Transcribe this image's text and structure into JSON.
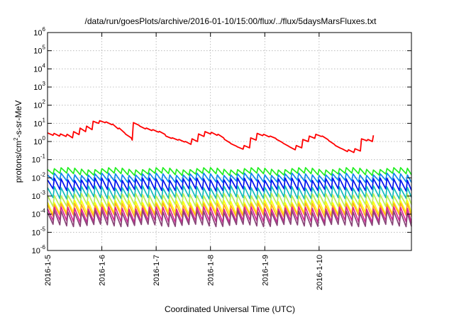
{
  "chart_data": {
    "type": "line",
    "title": "/data/run/goesPlots/archive/2016-01-10/15:00/flux/../flux/5daysMarsFluxes.txt",
    "xlabel": "Coordinated Universal Time (UTC)",
    "ylabel_parts": {
      "pre": "protons/cm",
      "sup": "2",
      "post": "-s-sr-MeV"
    },
    "y_scale": "log",
    "ylim": [
      1e-06,
      1000000.0
    ],
    "xlim_days": [
      0,
      6.7
    ],
    "x_ticks": [
      {
        "day": 0,
        "label": "2016-1-5"
      },
      {
        "day": 1,
        "label": "2016-1-6"
      },
      {
        "day": 2,
        "label": "2016-1-7"
      },
      {
        "day": 3,
        "label": "2016-1-8"
      },
      {
        "day": 4,
        "label": "2016-1-9"
      },
      {
        "day": 5,
        "label": "2016-1-10"
      }
    ],
    "y_ticks": [
      {
        "exp": -6,
        "base": "10",
        "sup": "-6"
      },
      {
        "exp": -5,
        "base": "10",
        "sup": "-5"
      },
      {
        "exp": -4,
        "base": "10",
        "sup": "-4"
      },
      {
        "exp": -3,
        "base": "10",
        "sup": "-3"
      },
      {
        "exp": -2,
        "base": "10",
        "sup": "-2"
      },
      {
        "exp": -1,
        "base": "10",
        "sup": "-1"
      },
      {
        "exp": 0,
        "base": "10",
        "sup": "0"
      },
      {
        "exp": 1,
        "base": "10",
        "sup": "1"
      },
      {
        "exp": 2,
        "base": "10",
        "sup": "2"
      },
      {
        "exp": 3,
        "base": "10",
        "sup": "3"
      },
      {
        "exp": 4,
        "base": "10",
        "sup": "4"
      },
      {
        "exp": 5,
        "base": "10",
        "sup": "5"
      },
      {
        "exp": 6,
        "base": "10",
        "sup": "6"
      }
    ],
    "grid": true,
    "main_series": {
      "color": "#ff0000",
      "points": [
        [
          0.0,
          3.0
        ],
        [
          0.1,
          2.2
        ],
        [
          0.12,
          2.8
        ],
        [
          0.22,
          2.0
        ],
        [
          0.24,
          2.6
        ],
        [
          0.34,
          1.9
        ],
        [
          0.36,
          2.5
        ],
        [
          0.46,
          1.6
        ],
        [
          0.48,
          3.5
        ],
        [
          0.58,
          2.4
        ],
        [
          0.6,
          5.5
        ],
        [
          0.7,
          3.5
        ],
        [
          0.72,
          7.0
        ],
        [
          0.82,
          4.5
        ],
        [
          0.84,
          13
        ],
        [
          0.94,
          10
        ],
        [
          0.96,
          14
        ],
        [
          1.06,
          11
        ],
        [
          1.08,
          12
        ],
        [
          1.18,
          8.5
        ],
        [
          1.2,
          9.0
        ],
        [
          1.3,
          5.0
        ],
        [
          1.32,
          5.5
        ],
        [
          1.42,
          3.0
        ],
        [
          1.44,
          2.5
        ],
        [
          1.54,
          1.6
        ],
        [
          1.56,
          1.2
        ],
        [
          1.58,
          11
        ],
        [
          1.68,
          8.0
        ],
        [
          1.7,
          7.0
        ],
        [
          1.8,
          5.0
        ],
        [
          1.82,
          5.5
        ],
        [
          1.92,
          4.0
        ],
        [
          1.94,
          4.5
        ],
        [
          2.04,
          3.3
        ],
        [
          2.06,
          3.6
        ],
        [
          2.16,
          2.5
        ],
        [
          2.18,
          2.0
        ],
        [
          2.28,
          1.5
        ],
        [
          2.3,
          1.6
        ],
        [
          2.4,
          1.2
        ],
        [
          2.42,
          1.3
        ],
        [
          2.52,
          0.95
        ],
        [
          2.54,
          1.0
        ],
        [
          2.64,
          0.7
        ],
        [
          2.66,
          1.4
        ],
        [
          2.76,
          1.0
        ],
        [
          2.78,
          2.6
        ],
        [
          2.88,
          1.9
        ],
        [
          2.9,
          3.5
        ],
        [
          3.0,
          2.6
        ],
        [
          3.02,
          3.2
        ],
        [
          3.12,
          2.2
        ],
        [
          3.14,
          2.5
        ],
        [
          3.24,
          1.6
        ],
        [
          3.26,
          1.3
        ],
        [
          3.36,
          0.85
        ],
        [
          3.38,
          0.75
        ],
        [
          3.48,
          0.55
        ],
        [
          3.5,
          0.5
        ],
        [
          3.6,
          0.38
        ],
        [
          3.62,
          0.6
        ],
        [
          3.72,
          0.45
        ],
        [
          3.74,
          1.6
        ],
        [
          3.84,
          1.2
        ],
        [
          3.86,
          2.8
        ],
        [
          3.96,
          2.1
        ],
        [
          3.98,
          2.5
        ],
        [
          4.08,
          1.8
        ],
        [
          4.1,
          2.0
        ],
        [
          4.2,
          1.5
        ],
        [
          4.22,
          1.3
        ],
        [
          4.32,
          0.9
        ],
        [
          4.34,
          0.8
        ],
        [
          4.44,
          0.55
        ],
        [
          4.46,
          0.5
        ],
        [
          4.56,
          0.35
        ],
        [
          4.58,
          0.6
        ],
        [
          4.68,
          0.45
        ],
        [
          4.7,
          1.3
        ],
        [
          4.8,
          1.0
        ],
        [
          4.82,
          2.0
        ],
        [
          4.92,
          1.5
        ],
        [
          4.94,
          2.5
        ],
        [
          5.04,
          1.9
        ],
        [
          5.06,
          2.0
        ],
        [
          5.16,
          1.3
        ],
        [
          5.18,
          1.1
        ],
        [
          5.28,
          0.7
        ],
        [
          5.3,
          0.6
        ],
        [
          5.4,
          0.42
        ],
        [
          5.42,
          0.4
        ],
        [
          5.52,
          0.28
        ],
        [
          5.54,
          0.35
        ],
        [
          5.64,
          0.25
        ],
        [
          5.66,
          0.4
        ],
        [
          5.76,
          0.3
        ],
        [
          5.78,
          1.4
        ],
        [
          5.88,
          1.1
        ],
        [
          5.9,
          1.3
        ],
        [
          5.98,
          1.0
        ],
        [
          6.0,
          2.2
        ]
      ]
    },
    "sawtooth_series": [
      {
        "color": "#22ee22",
        "peak": 0.032,
        "trough": 0.016
      },
      {
        "color": "#1188ee",
        "peak": 0.016,
        "trough": 0.0065
      },
      {
        "color": "#0011ee",
        "peak": 0.0085,
        "trough": 0.0022
      },
      {
        "color": "#11bbbb",
        "peak": 0.0032,
        "trough": 0.0008
      },
      {
        "color": "#bbee55",
        "peak": 0.0012,
        "trough": 0.0003
      },
      {
        "color": "#ffff11",
        "peak": 0.0005,
        "trough": 0.00011
      },
      {
        "color": "#ffaa22",
        "peak": 0.00035,
        "trough": 8e-05
      },
      {
        "color": "#dd2299",
        "peak": 0.00022,
        "trough": 4e-05
      },
      {
        "color": "#884477",
        "peak": 0.00014,
        "trough": 2.4e-05
      }
    ],
    "sawtooth_period_days": 0.125,
    "sawtooth_end_day": 6.0
  }
}
